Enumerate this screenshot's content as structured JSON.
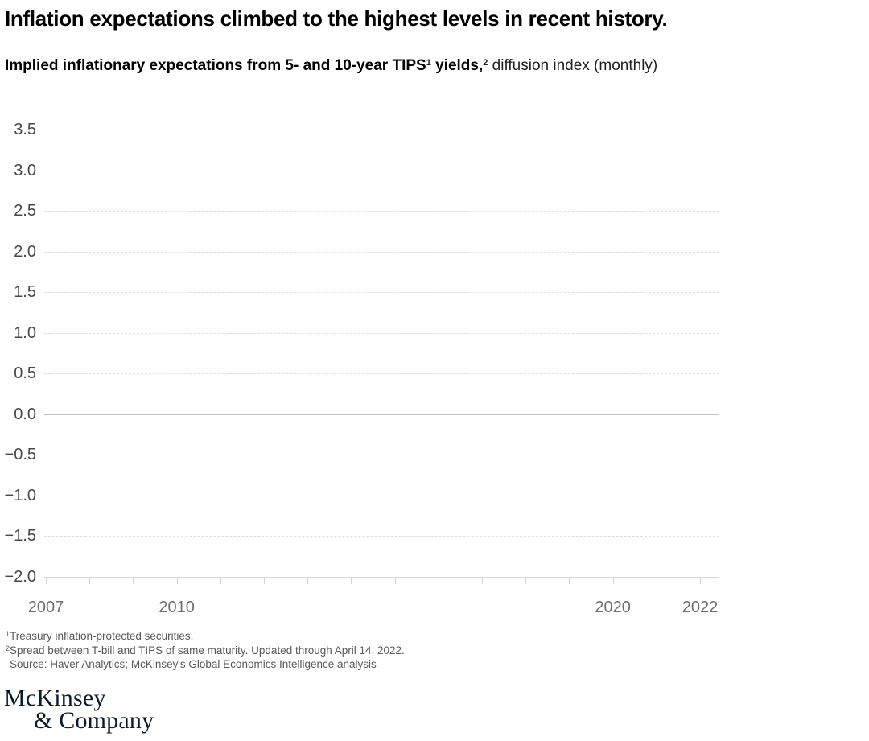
{
  "header": {
    "title": "Inflation expectations climbed to the highest levels in recent history.",
    "subtitle": {
      "bold_lead": "Implied inflationary expectations from 5- and 10-year TIPS",
      "sup1": "1",
      "bold_tail": " yields,",
      "sup2": "2",
      "regular": " diffusion index (monthly)"
    }
  },
  "chart_data": {
    "type": "line",
    "title": "Implied inflationary expectations from 5- and 10-year TIPS yields, diffusion index (monthly)",
    "series": [],
    "note_visible_data": "plot area is empty — only gridlines, axis ticks and labels are rendered",
    "grid": true,
    "legend": "none",
    "y_axis": {
      "range": [
        -2.0,
        3.5
      ],
      "tick_values": [
        3.5,
        3.0,
        2.5,
        2.0,
        1.5,
        1.0,
        0.5,
        0.0,
        -0.5,
        -1.0,
        -1.5,
        -2.0
      ],
      "tick_labels": [
        "3.5",
        "3.0",
        "2.5",
        "2.0",
        "1.5",
        "1.0",
        "0.5",
        "0.0",
        "−0.5",
        "−1.0",
        "−1.5",
        "−2.0"
      ]
    },
    "x_axis": {
      "range": [
        2007,
        2022
      ],
      "tick_values": [
        2007,
        2008,
        2009,
        2010,
        2011,
        2012,
        2013,
        2014,
        2015,
        2016,
        2017,
        2018,
        2019,
        2020,
        2021,
        2022
      ],
      "labeled_ticks": [
        "2007",
        "2010",
        "2020",
        "2022"
      ]
    }
  },
  "footnotes": [
    {
      "sup": "1",
      "text": "Treasury inflation-protected securities."
    },
    {
      "sup": "2",
      "text": "Spread between T-bill and TIPS of same maturity. Updated through April 14, 2022."
    },
    {
      "sup": "",
      "text": "Source: Haver Analytics; McKinsey's Global Economics Intelligence analysis"
    }
  ],
  "logo": {
    "line1": "McKinsey",
    "line2": "& Company"
  },
  "colors": {
    "brand_navy": "#051C2C",
    "gridline": "#DEDEDE",
    "zero_line": "#C2C2C2",
    "axis_line": "#D6D6D6",
    "y_label": "#474747",
    "x_label": "#6E6E6E",
    "footnote": "#595959"
  }
}
